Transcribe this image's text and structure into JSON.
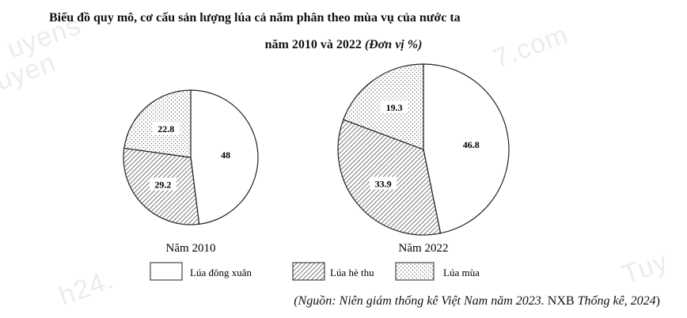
{
  "title_line1": "Biểu đồ quy mô, cơ cấu sản lượng lúa cả năm phân theo mùa vụ của nước ta",
  "title_line2": "năm 2010 và 2022",
  "unit": "(Đơn vị %)",
  "watermarks": [
    "uyens",
    "uyen",
    "7.com",
    "h24.",
    "Tuy"
  ],
  "source": {
    "part1": "(Nguồn: Niên giám thống kê Việt Nam năm 2023.",
    "part2": "NXB",
    "part3": "Thống kê, 2024",
    "part4": ")"
  },
  "chart_data": [
    {
      "type": "pie",
      "title": "Năm 2010",
      "labels": [
        "Lúa đông xuân",
        "Lúa hè thu",
        "Lúa mùa"
      ],
      "values": [
        48,
        29.2,
        22.8
      ],
      "value_labels": [
        "48",
        "29.2",
        "22.8"
      ]
    },
    {
      "type": "pie",
      "title": "Năm 2022",
      "labels": [
        "Lúa đông xuân",
        "Lúa hè thu",
        "Lúa mùa"
      ],
      "values": [
        46.8,
        33.9,
        19.3
      ],
      "value_labels": [
        "46.8",
        "33.9",
        "19.3"
      ]
    }
  ],
  "legend": {
    "items": [
      {
        "label": "Lúa đông xuân",
        "pattern": "plain"
      },
      {
        "label": "Lúa hè thu",
        "pattern": "hatch"
      },
      {
        "label": "Lúa mùa",
        "pattern": "dots"
      }
    ]
  },
  "colors": {
    "line": "#222222",
    "hatch": "#555555",
    "dots": "#777777"
  }
}
